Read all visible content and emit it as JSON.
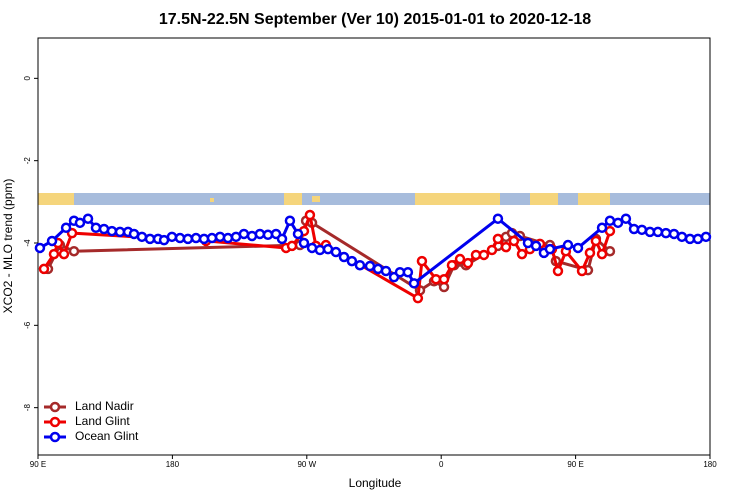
{
  "chart_data": {
    "type": "line",
    "title": "17.5N-22.5N September (Ver 10)   2015-01-01 to 2020-12-18",
    "x_label": "Longitude",
    "y_label": "XCO2 - MLO trend (ppm)",
    "xlim": [
      90,
      540
    ],
    "ylim": [
      -9.15,
      0.98
    ],
    "xticks": [
      {
        "value": 90,
        "label": "90 E"
      },
      {
        "value": 180,
        "label": "180"
      },
      {
        "value": 270,
        "label": "90 W"
      },
      {
        "value": 360,
        "label": "0"
      },
      {
        "value": 450,
        "label": "90 E"
      },
      {
        "value": 540,
        "label": "180"
      }
    ],
    "yticks": [
      0,
      -2,
      -4,
      -6,
      -8
    ],
    "legend": "bottom-left",
    "series": [
      {
        "name": "Land Nadir",
        "color": "#a52a2a",
        "x": [
          96.7,
          104.7,
          114.1,
          265.4,
          269.5,
          273.5,
          345.8,
          355.2,
          361.9,
          368.6,
          376.6,
          398.0,
          403.4,
          407.4,
          412.7,
          432.8,
          436.8,
          458.3,
          463.6,
          473.0
        ],
        "values": [
          -4.63,
          -4.05,
          -4.2,
          -4.05,
          -3.46,
          -3.51,
          -5.15,
          -4.93,
          -5.07,
          -4.54,
          -4.54,
          -4.07,
          -3.85,
          -3.76,
          -3.83,
          -4.05,
          -4.44,
          -4.66,
          -3.9,
          -4.2
        ]
      },
      {
        "name": "Land Glint",
        "color": "#ee0000",
        "x": [
          94.0,
          100.7,
          103.4,
          107.4,
          112.8,
          202.5,
          256.1,
          260.1,
          268.1,
          272.1,
          276.1,
          282.8,
          344.4,
          347.1,
          356.5,
          361.9,
          367.2,
          372.6,
          377.9,
          383.3,
          388.6,
          394.0,
          398.0,
          403.4,
          408.7,
          414.1,
          419.4,
          426.1,
          434.2,
          438.2,
          443.5,
          454.3,
          459.6,
          463.6,
          467.7,
          473.0
        ],
        "values": [
          -4.63,
          -4.27,
          -4.0,
          -4.27,
          -3.76,
          -3.95,
          -4.12,
          -4.07,
          -3.71,
          -3.32,
          -4.07,
          -4.05,
          -5.34,
          -4.44,
          -4.88,
          -4.88,
          -4.54,
          -4.39,
          -4.49,
          -4.29,
          -4.29,
          -4.17,
          -3.9,
          -4.1,
          -3.95,
          -4.27,
          -4.15,
          -4.02,
          -4.15,
          -4.68,
          -4.2,
          -4.68,
          -4.24,
          -3.95,
          -4.27,
          -3.71
        ]
      },
      {
        "name": "Ocean Glint",
        "color": "#0000ee",
        "x": [
          91.3,
          99.4,
          108.8,
          114.1,
          118.1,
          123.5,
          128.8,
          134.2,
          139.5,
          144.9,
          150.3,
          154.3,
          159.6,
          165.0,
          170.4,
          174.4,
          179.7,
          185.1,
          190.4,
          195.8,
          201.2,
          206.5,
          211.9,
          217.2,
          222.6,
          227.9,
          233.3,
          238.6,
          244.0,
          249.4,
          253.4,
          258.7,
          264.1,
          268.1,
          273.5,
          278.8,
          284.2,
          289.5,
          294.9,
          300.2,
          305.6,
          312.3,
          317.7,
          323.0,
          328.4,
          332.4,
          337.7,
          341.8,
          398.0,
          418.1,
          423.5,
          428.8,
          432.8,
          444.9,
          451.6,
          467.7,
          473.0,
          478.4,
          483.7,
          489.1,
          494.4,
          499.8,
          505.1,
          510.5,
          515.9,
          521.2,
          526.6,
          531.9,
          537.3
        ],
        "values": [
          -4.12,
          -3.95,
          -3.63,
          -3.46,
          -3.51,
          -3.41,
          -3.63,
          -3.66,
          -3.71,
          -3.73,
          -3.73,
          -3.78,
          -3.85,
          -3.9,
          -3.9,
          -3.93,
          -3.85,
          -3.88,
          -3.9,
          -3.88,
          -3.9,
          -3.88,
          -3.85,
          -3.88,
          -3.85,
          -3.78,
          -3.83,
          -3.78,
          -3.8,
          -3.78,
          -3.9,
          -3.46,
          -3.78,
          -4.0,
          -4.12,
          -4.17,
          -4.15,
          -4.22,
          -4.34,
          -4.44,
          -4.54,
          -4.56,
          -4.63,
          -4.68,
          -4.83,
          -4.71,
          -4.71,
          -4.98,
          -3.41,
          -4.0,
          -4.07,
          -4.24,
          -4.15,
          -4.05,
          -4.12,
          -3.63,
          -3.46,
          -3.51,
          -3.41,
          -3.66,
          -3.68,
          -3.73,
          -3.73,
          -3.76,
          -3.78,
          -3.85,
          -3.9,
          -3.9,
          -3.85
        ]
      }
    ]
  }
}
